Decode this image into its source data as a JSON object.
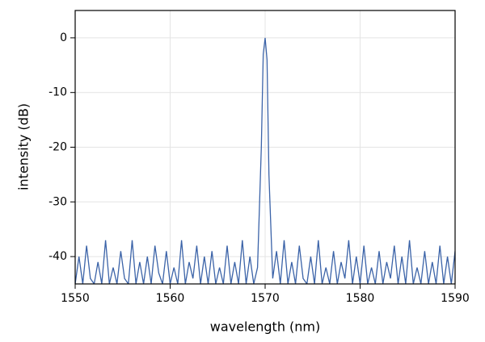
{
  "chart_data": {
    "type": "line",
    "xlabel": "wavelength (nm)",
    "ylabel": "intensity (dB)",
    "x": [
      1550,
      1550.4,
      1550.8,
      1551.2,
      1551.6,
      1552,
      1552.4,
      1552.8,
      1553.2,
      1553.6,
      1554,
      1554.4,
      1554.8,
      1555.2,
      1555.6,
      1556,
      1556.4,
      1556.8,
      1557.2,
      1557.6,
      1558,
      1558.4,
      1558.8,
      1559.2,
      1559.6,
      1560,
      1560.4,
      1560.8,
      1561.2,
      1561.6,
      1562,
      1562.4,
      1562.8,
      1563.2,
      1563.6,
      1564,
      1564.4,
      1564.8,
      1565.2,
      1565.6,
      1566,
      1566.4,
      1566.8,
      1567.2,
      1567.6,
      1568,
      1568.4,
      1568.8,
      1569.2,
      1569.6,
      1569.8,
      1570,
      1570.2,
      1570.4,
      1570.8,
      1571.2,
      1571.6,
      1572,
      1572.4,
      1572.8,
      1573.2,
      1573.6,
      1574,
      1574.4,
      1574.8,
      1575.2,
      1575.6,
      1576,
      1576.4,
      1576.8,
      1577.2,
      1577.6,
      1578,
      1578.4,
      1578.8,
      1579.2,
      1579.6,
      1580,
      1580.4,
      1580.8,
      1581.2,
      1581.6,
      1582,
      1582.4,
      1582.8,
      1583.2,
      1583.6,
      1584,
      1584.4,
      1584.8,
      1585.2,
      1585.6,
      1586,
      1586.4,
      1586.8,
      1587.2,
      1587.6,
      1588,
      1588.4,
      1588.8,
      1589.2,
      1589.6,
      1590
    ],
    "values": [
      -45,
      -40,
      -45,
      -38,
      -44,
      -45,
      -41,
      -45,
      -37,
      -45,
      -42,
      -45,
      -39,
      -44,
      -45,
      -37,
      -45,
      -41,
      -45,
      -40,
      -45,
      -38,
      -43,
      -45,
      -39,
      -45,
      -42,
      -45,
      -37,
      -45,
      -41,
      -44,
      -38,
      -45,
      -40,
      -45,
      -39,
      -45,
      -42,
      -45,
      -38,
      -45,
      -41,
      -45,
      -37,
      -45,
      -40,
      -45,
      -42,
      -20,
      -3,
      0,
      -4,
      -25,
      -44,
      -39,
      -45,
      -37,
      -45,
      -41,
      -45,
      -38,
      -44,
      -45,
      -40,
      -45,
      -37,
      -45,
      -42,
      -45,
      -39,
      -45,
      -41,
      -44,
      -37,
      -45,
      -40,
      -45,
      -38,
      -45,
      -42,
      -45,
      -39,
      -45,
      -41,
      -44,
      -38,
      -45,
      -40,
      -45,
      -37,
      -45,
      -42,
      -45,
      -39,
      -45,
      -41,
      -45,
      -38,
      -45,
      -40,
      -45,
      -39
    ],
    "color": "#3b63a8",
    "xlim": [
      1550,
      1590
    ],
    "xticks": [
      1550,
      1560,
      1570,
      1580,
      1590
    ],
    "ylim": [
      -45,
      5
    ],
    "yticks": [
      0,
      -10,
      -20,
      -30,
      -40
    ],
    "grid": true
  }
}
